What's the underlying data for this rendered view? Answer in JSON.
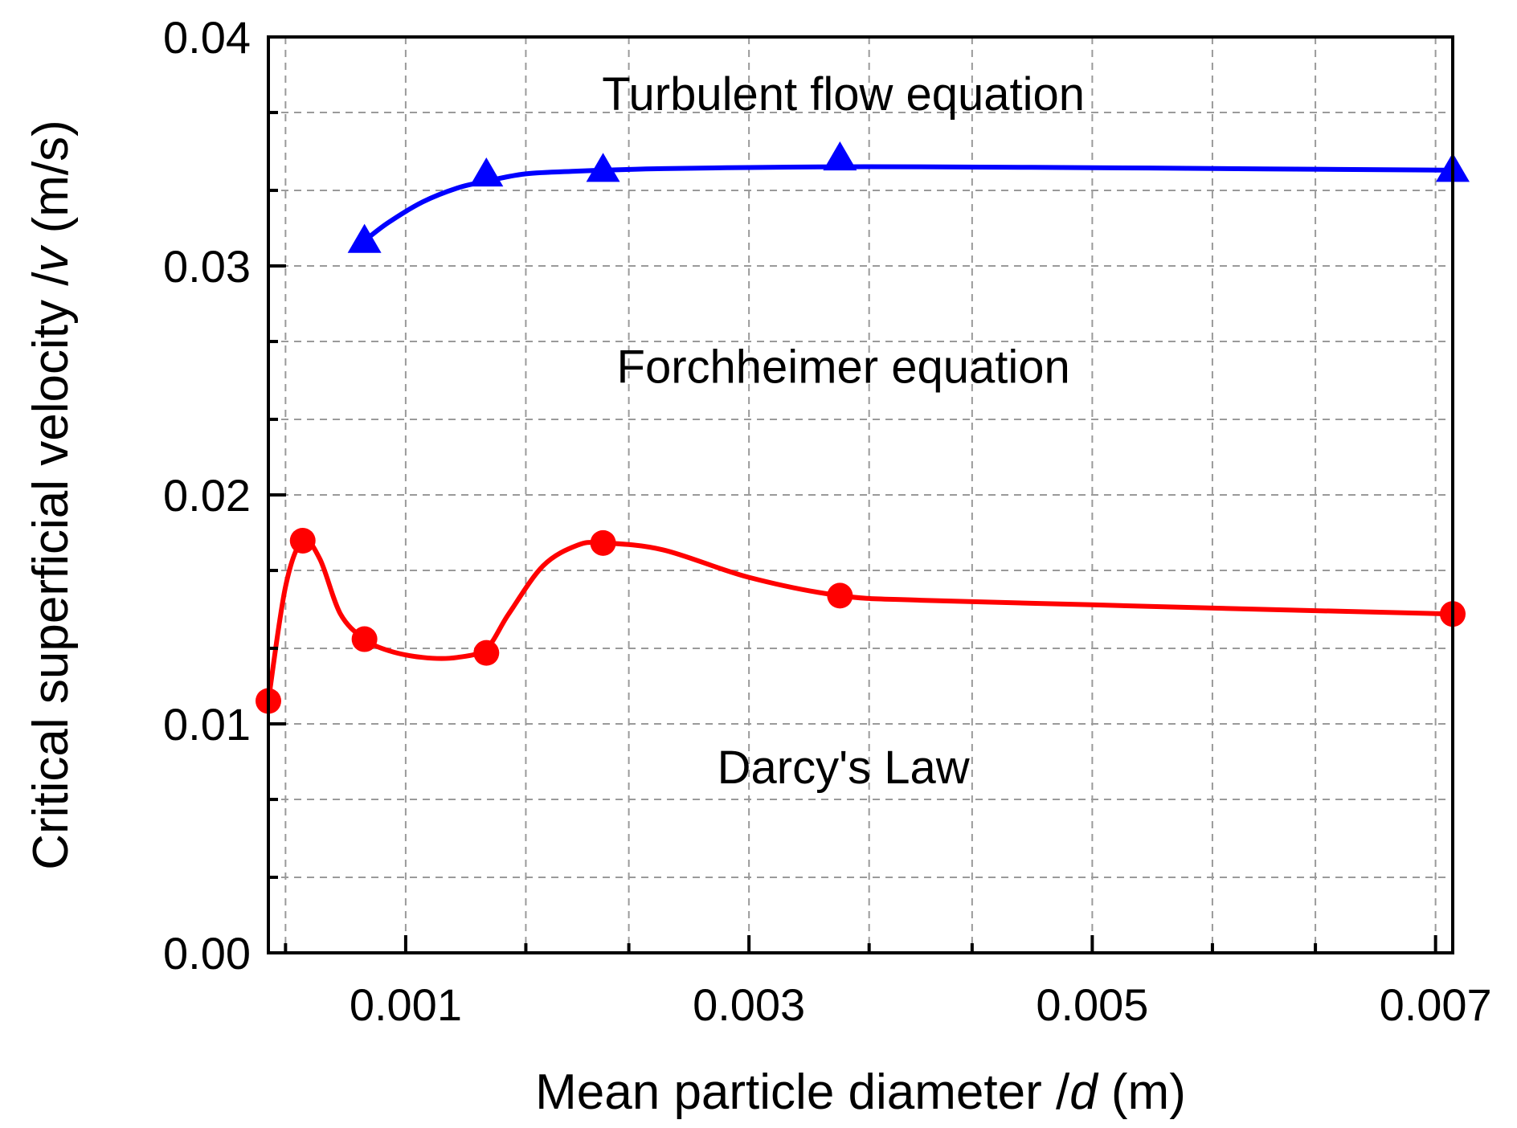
{
  "chart_data": {
    "type": "line",
    "title": "",
    "xlabel": {
      "prefix": "Mean particle diameter /",
      "var": "d",
      "suffix": " (m)"
    },
    "ylabel": {
      "prefix": "Critical superficial velocity /",
      "var": "v",
      "suffix": " (m/s)"
    },
    "xlim": [
      0.0002,
      0.0071
    ],
    "ylim": [
      0,
      0.04
    ],
    "grid": true,
    "x_ticks": [
      {
        "value": 0.001,
        "label": "0.001"
      },
      {
        "value": 0.003,
        "label": "0.003"
      },
      {
        "value": 0.005,
        "label": "0.005"
      },
      {
        "value": 0.007,
        "label": "0.007"
      }
    ],
    "x_minor_ticks": [
      0.0003,
      0.0017,
      0.0023,
      0.0037,
      0.0043,
      0.0057,
      0.0063
    ],
    "y_ticks": [
      {
        "value": 0,
        "label": "0.00"
      },
      {
        "value": 0.01,
        "label": "0.01"
      },
      {
        "value": 0.02,
        "label": "0.02"
      },
      {
        "value": 0.03,
        "label": "0.03"
      },
      {
        "value": 0.04,
        "label": "0.04"
      }
    ],
    "y_minor_ticks": [
      0.0033,
      0.0067,
      0.0133,
      0.0167,
      0.0233,
      0.0267,
      0.0333,
      0.0367
    ],
    "series": [
      {
        "name": "Turbulent flow equation boundary",
        "color": "#0000ff",
        "marker": "triangle",
        "x": [
          0.00076,
          0.00147,
          0.00215,
          0.00353,
          0.0071
        ],
        "y": [
          0.0311,
          0.034,
          0.0342,
          0.0347,
          0.0342
        ],
        "curve_x": [
          0.00076,
          0.0009,
          0.0011,
          0.0013,
          0.00147,
          0.0017,
          0.002,
          0.00215,
          0.0025,
          0.003,
          0.00353,
          0.004,
          0.005,
          0.006,
          0.0071
        ],
        "curve_y": [
          0.0311,
          0.0319,
          0.0328,
          0.0334,
          0.0337,
          0.03402,
          0.03414,
          0.03418,
          0.03425,
          0.0343,
          0.03433,
          0.03433,
          0.03429,
          0.03424,
          0.03418
        ]
      },
      {
        "name": "Darcy's Law boundary",
        "color": "#ff0000",
        "marker": "circle",
        "x": [
          0.0002,
          0.0004,
          0.00076,
          0.00147,
          0.00215,
          0.00353,
          0.0071
        ],
        "y": [
          0.011,
          0.018,
          0.0137,
          0.0131,
          0.0179,
          0.0156,
          0.0148
        ],
        "curve_x": [
          0.0002,
          0.0003,
          0.0004,
          0.0005,
          0.00062,
          0.00076,
          0.0009,
          0.0011,
          0.0013,
          0.00147,
          0.0016,
          0.0018,
          0.002,
          0.00215,
          0.0025,
          0.003,
          0.00353,
          0.004,
          0.005,
          0.006,
          0.0071
        ],
        "curve_y": [
          0.011,
          0.016,
          0.018,
          0.0172,
          0.0148,
          0.0137,
          0.0132,
          0.0129,
          0.0129,
          0.0133,
          0.0148,
          0.0169,
          0.0178,
          0.0179,
          0.0176,
          0.0164,
          0.0156,
          0.0154,
          0.0152,
          0.015,
          0.0148
        ]
      }
    ],
    "annotations": [
      {
        "text": "Turbulent flow equation",
        "x": 0.00355,
        "y": 0.0368
      },
      {
        "text": "Forchheimer equation",
        "x": 0.00355,
        "y": 0.0249
      },
      {
        "text": "Darcy's Law",
        "x": 0.00355,
        "y": 0.0074
      }
    ]
  }
}
